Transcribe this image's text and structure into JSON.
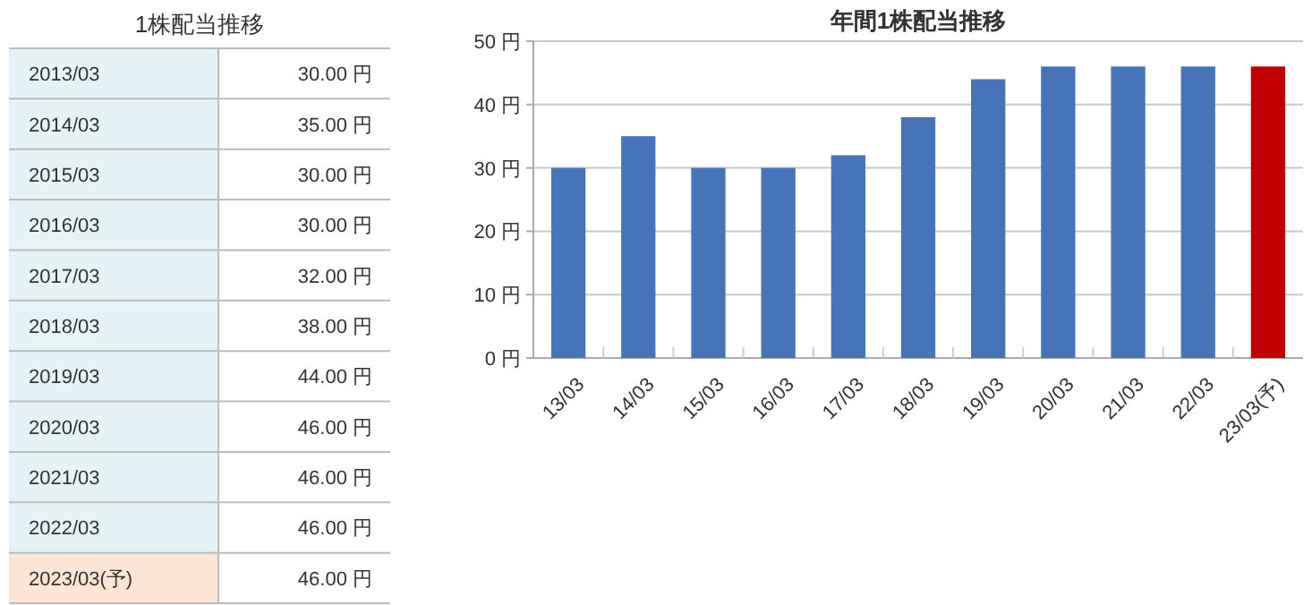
{
  "chart_data": [
    {
      "type": "other",
      "title": "1株配当推移",
      "categories": [
        "2013/03",
        "2014/03",
        "2015/03",
        "2016/03",
        "2017/03",
        "2018/03",
        "2019/03",
        "2020/03",
        "2021/03",
        "2022/03",
        "2023/03(予)"
      ],
      "value_labels": [
        "30.00 円",
        "35.00 円",
        "30.00 円",
        "30.00 円",
        "32.00 円",
        "38.00 円",
        "44.00 円",
        "46.00 円",
        "46.00 円",
        "46.00 円",
        "46.00 円"
      ],
      "colors": [
        "#e5f3f7",
        "#e5f3f7",
        "#e5f3f7",
        "#e5f3f7",
        "#e5f3f7",
        "#e5f3f7",
        "#e5f3f7",
        "#e5f3f7",
        "#e5f3f7",
        "#e5f3f7",
        "#fde5d5"
      ]
    },
    {
      "type": "bar",
      "title": "年間1株配当推移",
      "categories": [
        "13/03",
        "14/03",
        "15/03",
        "16/03",
        "17/03",
        "18/03",
        "19/03",
        "20/03",
        "21/03",
        "22/03",
        "23/03(予)"
      ],
      "values": [
        30,
        35,
        30,
        30,
        32,
        38,
        44,
        46,
        46,
        46,
        46
      ],
      "colors": [
        "#4674b8",
        "#4674b8",
        "#4674b8",
        "#4674b8",
        "#4674b8",
        "#4674b8",
        "#4674b8",
        "#4674b8",
        "#4674b8",
        "#4674b8",
        "#c00000"
      ],
      "ylim": [
        0,
        50
      ],
      "yticks": [
        {
          "value": 0,
          "label": "0 円"
        },
        {
          "value": 10,
          "label": "10 円"
        },
        {
          "value": 20,
          "label": "20 円"
        },
        {
          "value": 30,
          "label": "30 円"
        },
        {
          "value": 40,
          "label": "40 円"
        },
        {
          "value": 50,
          "label": "50 円"
        }
      ],
      "grid": "y"
    }
  ]
}
